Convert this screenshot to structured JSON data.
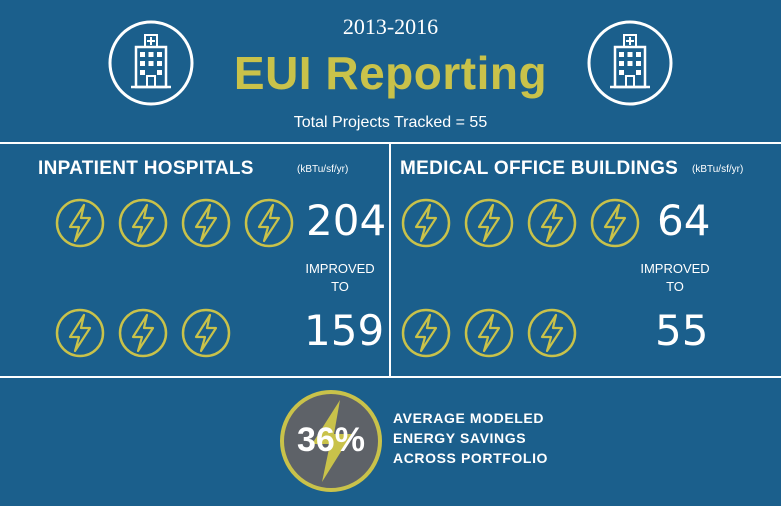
{
  "header": {
    "years": "2013-2016",
    "title": "EUI Reporting",
    "subtitle": "Total Projects Tracked = 55",
    "left_icon": "hospital-building-icon",
    "right_icon": "hospital-building-icon"
  },
  "colors": {
    "background": "#1b5f8c",
    "accent": "#c9c24a",
    "text": "#ffffff",
    "badge": "#5e6268"
  },
  "inpatient": {
    "title": "INPATIENT HOSPITALS",
    "unit": "(kBTu/sf/yr)",
    "before_value": "204",
    "before_bolts": 4,
    "improved_line1": "IMPROVED",
    "improved_line2": "TO",
    "after_value": "159",
    "after_bolts": 3
  },
  "medical_office": {
    "title": "MEDICAL OFFICE BUILDINGS",
    "unit": "(kBTu/sf/yr)",
    "before_value": "64",
    "before_bolts": 4,
    "improved_line1": "IMPROVED",
    "improved_line2": "TO",
    "after_value": "55",
    "after_bolts": 3
  },
  "savings": {
    "percent": "36%",
    "line1": "AVERAGE MODELED",
    "line2": "ENERGY SAVINGS",
    "line3": "ACROSS PORTFOLIO"
  }
}
